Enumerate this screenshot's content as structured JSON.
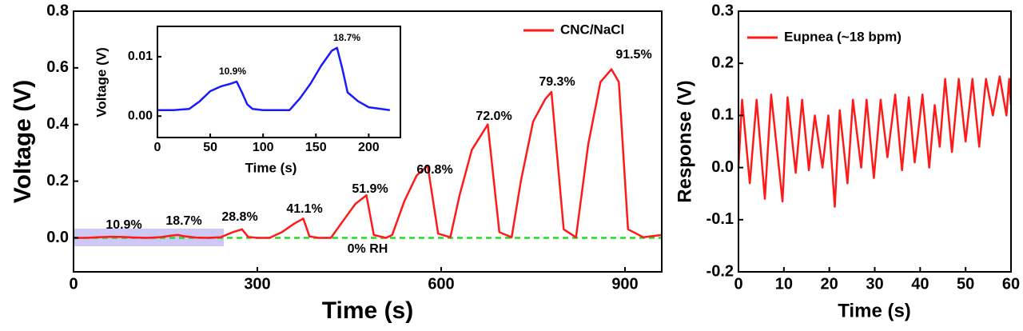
{
  "chart_data": [
    {
      "type": "line",
      "xlabel": "Time (s)",
      "ylabel": "Voltage (V)",
      "x": [
        0,
        20,
        40,
        60,
        80,
        100,
        120,
        140,
        160,
        170,
        180,
        200,
        220,
        240,
        260,
        275,
        285,
        300,
        320,
        340,
        360,
        375,
        385,
        400,
        420,
        440,
        460,
        478,
        490,
        510,
        520,
        540,
        560,
        578,
        595,
        615,
        630,
        650,
        676,
        695,
        715,
        730,
        750,
        770,
        780,
        800,
        820,
        840,
        860,
        878,
        890,
        905,
        930,
        960
      ],
      "series": [
        {
          "name": "CNC/NaCl",
          "color": "#ff1a1a",
          "values": [
            0,
            0,
            0.002,
            0.004,
            0.003,
            0.001,
            0,
            0.002,
            0.008,
            0.01,
            0.006,
            0.001,
            0,
            0.002,
            0.02,
            0.03,
            0.003,
            0,
            0,
            0.02,
            0.05,
            0.068,
            0.005,
            0,
            0,
            0.06,
            0.12,
            0.15,
            0.01,
            0,
            0.01,
            0.13,
            0.22,
            0.255,
            0.015,
            0.002,
            0.15,
            0.31,
            0.4,
            0.02,
            0.002,
            0.2,
            0.41,
            0.49,
            0.515,
            0.03,
            0.002,
            0.33,
            0.55,
            0.595,
            0.55,
            0.03,
            0.002,
            0.01
          ]
        }
      ],
      "annotations": [
        "10.9%",
        "18.7%",
        "28.8%",
        "41.1%",
        "51.9%",
        "60.8%",
        "72.0%",
        "79.3%",
        "91.5%",
        "0% RH"
      ],
      "xlim": [
        0,
        960
      ],
      "xticks": [
        0,
        300,
        600,
        900
      ],
      "ylim": [
        -0.12,
        0.8
      ],
      "yticks": [
        {
          "value": 0,
          "label": "0.0"
        },
        0.2,
        0.4,
        0.6,
        0.8
      ]
    },
    {
      "type": "line",
      "xlabel": "Time (s)",
      "ylabel": "Voltage (V)",
      "x": [
        0,
        15,
        30,
        40,
        50,
        60,
        70,
        75,
        80,
        85,
        90,
        100,
        110,
        125,
        135,
        145,
        155,
        165,
        170,
        175,
        180,
        190,
        200,
        220
      ],
      "series": [
        {
          "name": null,
          "color": "#1a1aff",
          "values": [
            0.001,
            0.001,
            0.0012,
            0.0025,
            0.0042,
            0.005,
            0.0055,
            0.0058,
            0.004,
            0.002,
            0.0012,
            0.001,
            0.001,
            0.001,
            0.003,
            0.0055,
            0.0085,
            0.011,
            0.0115,
            0.008,
            0.004,
            0.0025,
            0.0015,
            0.001
          ]
        }
      ],
      "annotations": [
        "10.9%",
        "18.7%"
      ],
      "xlim": [
        0,
        230
      ],
      "xticks": [
        0,
        50,
        100,
        150,
        200
      ],
      "ylim": [
        -0.0036,
        0.0151
      ],
      "yticks": [
        {
          "value": 0,
          "label": "0.00"
        },
        0.01
      ]
    },
    {
      "type": "line",
      "xlabel": "Time (s)",
      "ylabel": "Response (V)",
      "x": [
        0,
        0.8,
        2.5,
        4,
        5.8,
        7.2,
        9.7,
        10.8,
        12.6,
        14,
        15.5,
        16.8,
        18.5,
        19.8,
        21.2,
        22.3,
        24,
        25.2,
        27,
        28.2,
        29.8,
        31.3,
        32.8,
        34.5,
        36,
        37.5,
        38.8,
        40.5,
        42,
        43.2,
        44.3,
        45.5,
        47,
        48.5,
        50,
        51.5,
        53,
        54.5,
        56,
        57.5,
        59,
        59.6,
        60
      ],
      "series": [
        {
          "name": "Eupnea (~18 bpm)",
          "color": "#ff1a1a",
          "values": [
            0,
            0.13,
            -0.03,
            0.13,
            -0.06,
            0.14,
            -0.065,
            0.135,
            -0.01,
            0.13,
            -0.005,
            0.1,
            0,
            0.1,
            -0.075,
            0.11,
            -0.03,
            0.13,
            0,
            0.13,
            -0.02,
            0.13,
            0.02,
            0.14,
            -0.005,
            0.135,
            0.01,
            0.14,
            0,
            0.12,
            0.04,
            0.17,
            0.03,
            0.17,
            0.05,
            0.17,
            0.04,
            0.17,
            0.1,
            0.175,
            0.1,
            0.17,
            0.12
          ]
        }
      ],
      "xlim": [
        0,
        60
      ],
      "xticks": [
        0,
        10,
        20,
        30,
        40,
        50,
        60
      ],
      "ylim": [
        -0.2,
        0.3
      ],
      "yticks": [
        -0.2,
        -0.1,
        {
          "value": 0,
          "label": "0.0"
        },
        0.1,
        0.2,
        0.3
      ]
    }
  ]
}
